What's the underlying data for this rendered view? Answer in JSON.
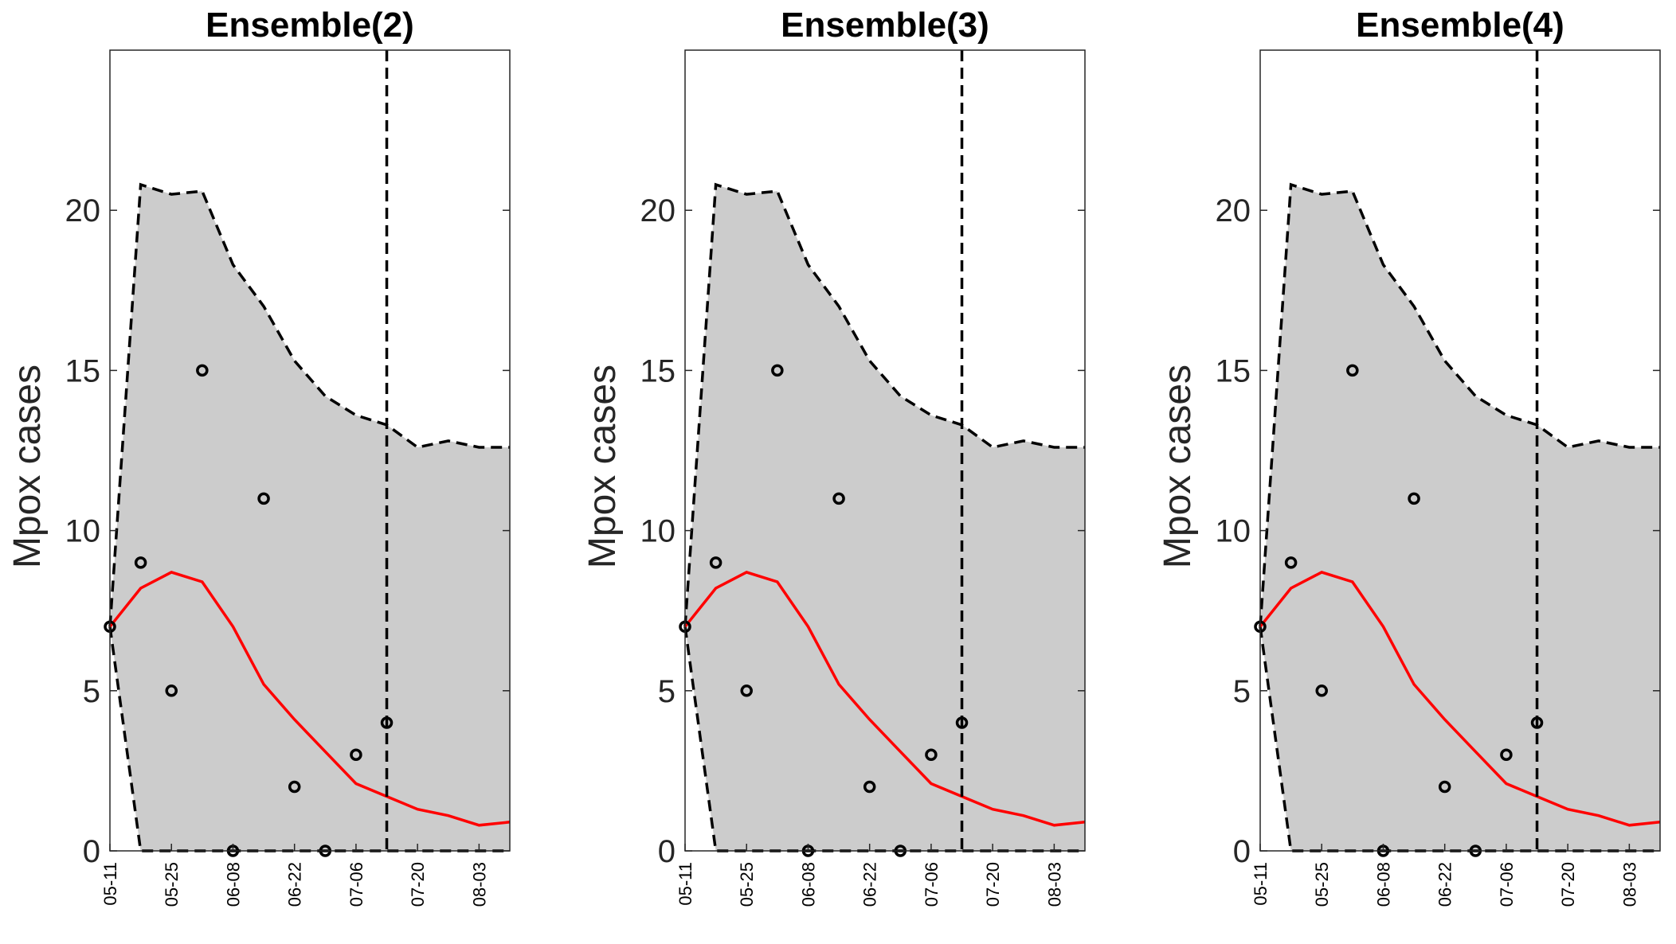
{
  "chart_data": [
    {
      "type": "line",
      "title": "Ensemble(2)",
      "xlabel": "",
      "ylabel": "Mpox cases",
      "ylim": [
        0,
        25
      ],
      "yticks": [
        0,
        5,
        10,
        15,
        20
      ],
      "xticks": [
        "05-11",
        "05-25",
        "06-08",
        "06-22",
        "07-06",
        "07-20",
        "08-03"
      ],
      "x": [
        "05-11",
        "05-18",
        "05-25",
        "06-01",
        "06-08",
        "06-15",
        "06-22",
        "06-29",
        "07-06",
        "07-13",
        "07-20",
        "07-27",
        "08-03",
        "08-10"
      ],
      "forecast_start": "07-13",
      "band_upper": [
        7.0,
        20.8,
        20.5,
        20.6,
        18.3,
        17.0,
        15.3,
        14.2,
        13.6,
        13.3,
        12.6,
        12.8,
        12.6,
        12.6
      ],
      "band_lower": [
        7.0,
        0.0,
        0.0,
        0.0,
        0.0,
        0.0,
        0.0,
        0.0,
        0.0,
        0.0,
        0.0,
        0.0,
        0.0,
        0.0
      ],
      "mean": [
        7.0,
        8.2,
        8.7,
        8.4,
        7.0,
        5.2,
        4.1,
        3.1,
        2.1,
        1.7,
        1.3,
        1.1,
        0.8,
        0.9
      ],
      "observed": [
        7,
        9,
        5,
        15,
        0,
        11,
        2,
        0,
        3,
        4
      ],
      "colors": {
        "band": "#cccccc",
        "mean": "#ff0000",
        "bounds": "#000000",
        "observed": "#000000"
      }
    },
    {
      "type": "line",
      "title": "Ensemble(3)",
      "xlabel": "",
      "ylabel": "Mpox cases",
      "ylim": [
        0,
        25
      ],
      "yticks": [
        0,
        5,
        10,
        15,
        20
      ],
      "xticks": [
        "05-11",
        "05-25",
        "06-08",
        "06-22",
        "07-06",
        "07-20",
        "08-03"
      ],
      "x": [
        "05-11",
        "05-18",
        "05-25",
        "06-01",
        "06-08",
        "06-15",
        "06-22",
        "06-29",
        "07-06",
        "07-13",
        "07-20",
        "07-27",
        "08-03",
        "08-10"
      ],
      "forecast_start": "07-13",
      "band_upper": [
        7.0,
        20.8,
        20.5,
        20.6,
        18.3,
        17.0,
        15.3,
        14.2,
        13.6,
        13.3,
        12.6,
        12.8,
        12.6,
        12.6
      ],
      "band_lower": [
        7.0,
        0.0,
        0.0,
        0.0,
        0.0,
        0.0,
        0.0,
        0.0,
        0.0,
        0.0,
        0.0,
        0.0,
        0.0,
        0.0
      ],
      "mean": [
        7.0,
        8.2,
        8.7,
        8.4,
        7.0,
        5.2,
        4.1,
        3.1,
        2.1,
        1.7,
        1.3,
        1.1,
        0.8,
        0.9
      ],
      "observed": [
        7,
        9,
        5,
        15,
        0,
        11,
        2,
        0,
        3,
        4
      ],
      "colors": {
        "band": "#cccccc",
        "mean": "#ff0000",
        "bounds": "#000000",
        "observed": "#000000"
      }
    },
    {
      "type": "line",
      "title": "Ensemble(4)",
      "xlabel": "",
      "ylabel": "Mpox cases",
      "ylim": [
        0,
        25
      ],
      "yticks": [
        0,
        5,
        10,
        15,
        20
      ],
      "xticks": [
        "05-11",
        "05-25",
        "06-08",
        "06-22",
        "07-06",
        "07-20",
        "08-03"
      ],
      "x": [
        "05-11",
        "05-18",
        "05-25",
        "06-01",
        "06-08",
        "06-15",
        "06-22",
        "06-29",
        "07-06",
        "07-13",
        "07-20",
        "07-27",
        "08-03",
        "08-10"
      ],
      "forecast_start": "07-13",
      "band_upper": [
        7.0,
        20.8,
        20.5,
        20.6,
        18.3,
        17.0,
        15.3,
        14.2,
        13.6,
        13.3,
        12.6,
        12.8,
        12.6,
        12.6
      ],
      "band_lower": [
        7.0,
        0.0,
        0.0,
        0.0,
        0.0,
        0.0,
        0.0,
        0.0,
        0.0,
        0.0,
        0.0,
        0.0,
        0.0,
        0.0
      ],
      "mean": [
        7.0,
        8.2,
        8.7,
        8.4,
        7.0,
        5.2,
        4.1,
        3.1,
        2.1,
        1.7,
        1.3,
        1.1,
        0.8,
        0.9
      ],
      "observed": [
        7,
        9,
        5,
        15,
        0,
        11,
        2,
        0,
        3,
        4
      ],
      "colors": {
        "band": "#cccccc",
        "mean": "#ff0000",
        "bounds": "#000000",
        "observed": "#000000"
      }
    }
  ]
}
